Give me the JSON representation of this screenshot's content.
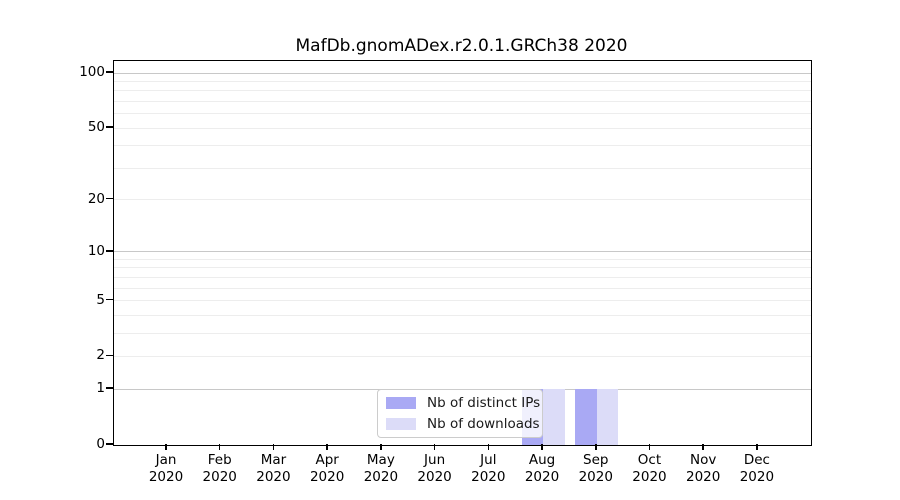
{
  "chart_data": {
    "type": "bar",
    "title": "MafDb.gnomADex.r2.0.1.GRCh38 2020",
    "categories": [
      "Jan 2020",
      "Feb 2020",
      "Mar 2020",
      "Apr 2020",
      "May 2020",
      "Jun 2020",
      "Jul 2020",
      "Aug 2020",
      "Sep 2020",
      "Oct 2020",
      "Nov 2020",
      "Dec 2020"
    ],
    "months": [
      "Jan",
      "Feb",
      "Mar",
      "Apr",
      "May",
      "Jun",
      "Jul",
      "Aug",
      "Sep",
      "Oct",
      "Nov",
      "Dec"
    ],
    "year": "2020",
    "series": [
      {
        "name": "Nb of distinct IPs",
        "color": "#a9a9f4",
        "values": [
          0,
          0,
          0,
          0,
          0,
          0,
          0,
          1,
          1,
          0,
          0,
          0
        ]
      },
      {
        "name": "Nb of downloads",
        "color": "#dcdcf8",
        "values": [
          0,
          0,
          0,
          0,
          0,
          0,
          0,
          1,
          1,
          0,
          0,
          0
        ]
      }
    ],
    "xlabel": "",
    "ylabel": "",
    "y_scale": "log10(value+1)",
    "ylim": [
      0,
      114
    ],
    "y_ticks": [
      0,
      1,
      2,
      5,
      10,
      20,
      50,
      100
    ],
    "gridlines": {
      "emphasized": [
        1,
        10,
        100
      ],
      "light": [
        2,
        3,
        4,
        5,
        6,
        7,
        8,
        9,
        20,
        30,
        40,
        50,
        60,
        70,
        80,
        90
      ]
    },
    "grid": true,
    "legend": {
      "position": "bottom-center",
      "entries": [
        "Nb of distinct IPs",
        "Nb of downloads"
      ]
    }
  }
}
